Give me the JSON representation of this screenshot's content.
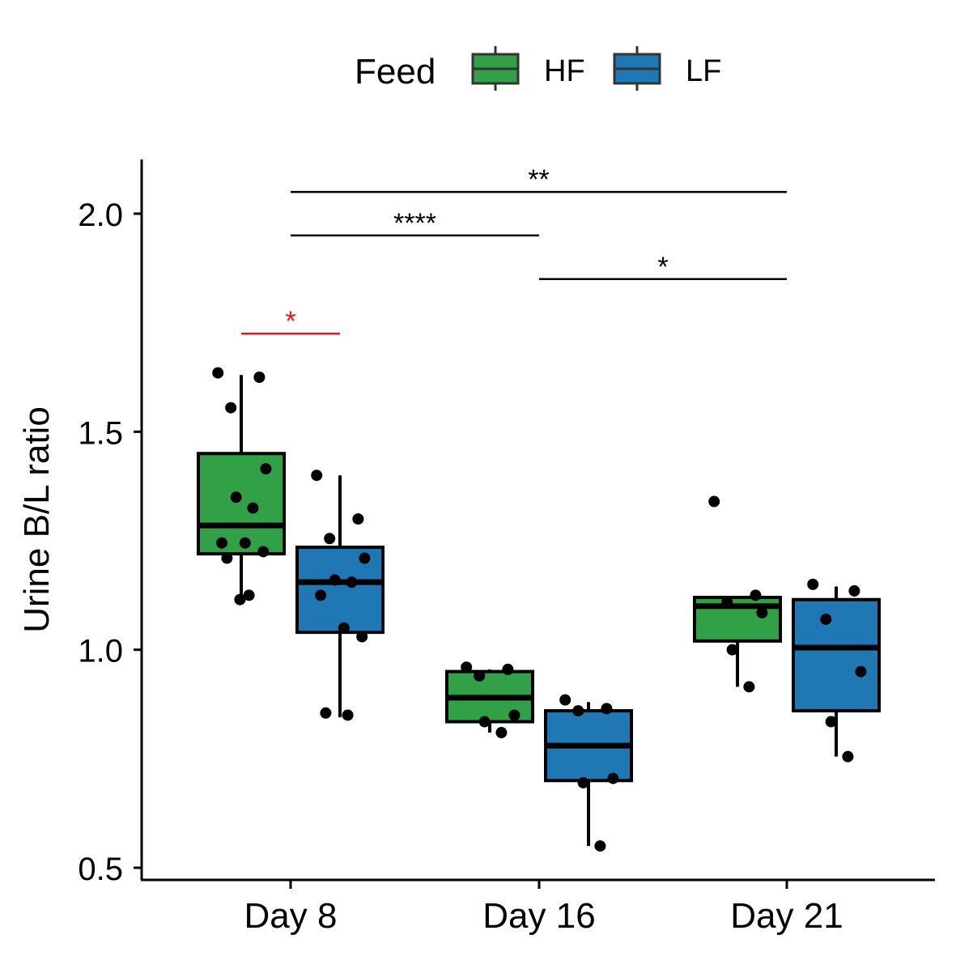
{
  "chart_data": {
    "type": "box",
    "legend": {
      "title": "Feed",
      "position": "top",
      "entries": [
        {
          "label": "HF",
          "color": "#31A046"
        },
        {
          "label": "LF",
          "color": "#1F78B4"
        }
      ]
    },
    "ylabel": "Urine B/L ratio",
    "xlabel": "",
    "ylim": [
      0.48,
      2.12
    ],
    "yticks": [
      "0.5",
      "1.0",
      "1.5",
      "2.0"
    ],
    "categories": [
      "Day 8",
      "Day 16",
      "Day 21"
    ],
    "grid": false,
    "series": [
      {
        "name": "HF",
        "color": "#31A046",
        "boxes": [
          {
            "category": "Day 8",
            "min": 1.12,
            "q1": 1.22,
            "median": 1.285,
            "q3": 1.45,
            "max": 1.63,
            "points": [
              1.635,
              1.625,
              1.555,
              1.415,
              1.35,
              1.325,
              1.245,
              1.245,
              1.225,
              1.21,
              1.125,
              1.115
            ]
          },
          {
            "category": "Day 16",
            "min": 0.81,
            "q1": 0.835,
            "median": 0.89,
            "q3": 0.95,
            "max": 0.955,
            "points": [
              0.96,
              0.955,
              0.94,
              0.85,
              0.835,
              0.81
            ]
          },
          {
            "category": "Day 21",
            "min": 0.915,
            "q1": 1.02,
            "median": 1.1,
            "q3": 1.12,
            "max": 1.12,
            "points": [
              1.34,
              1.125,
              1.11,
              1.085,
              1.0,
              0.915
            ]
          }
        ]
      },
      {
        "name": "LF",
        "color": "#1F78B4",
        "boxes": [
          {
            "category": "Day 8",
            "min": 0.845,
            "q1": 1.04,
            "median": 1.155,
            "q3": 1.235,
            "max": 1.4,
            "points": [
              1.4,
              1.3,
              1.255,
              1.21,
              1.16,
              1.155,
              1.125,
              1.05,
              1.03,
              0.855,
              0.85
            ]
          },
          {
            "category": "Day 16",
            "min": 0.55,
            "q1": 0.7,
            "median": 0.78,
            "q3": 0.86,
            "max": 0.88,
            "points": [
              0.885,
              0.865,
              0.86,
              0.705,
              0.695,
              0.55
            ]
          },
          {
            "category": "Day 21",
            "min": 0.755,
            "q1": 0.86,
            "median": 1.005,
            "q3": 1.115,
            "max": 1.145,
            "points": [
              1.15,
              1.135,
              1.07,
              0.95,
              0.835,
              0.755
            ]
          }
        ]
      }
    ],
    "annotations": [
      {
        "label": "*",
        "from": "Day 8 HF",
        "to": "Day 8 LF",
        "y": 1.725,
        "color": "#E8141C"
      },
      {
        "label": "****",
        "from": "Day 8",
        "to": "Day 16",
        "y": 1.95,
        "color": "#000000"
      },
      {
        "label": "*",
        "from": "Day 16",
        "to": "Day 21",
        "y": 1.85,
        "color": "#000000"
      },
      {
        "label": "**",
        "from": "Day 8",
        "to": "Day 21",
        "y": 2.05,
        "color": "#000000"
      }
    ]
  }
}
